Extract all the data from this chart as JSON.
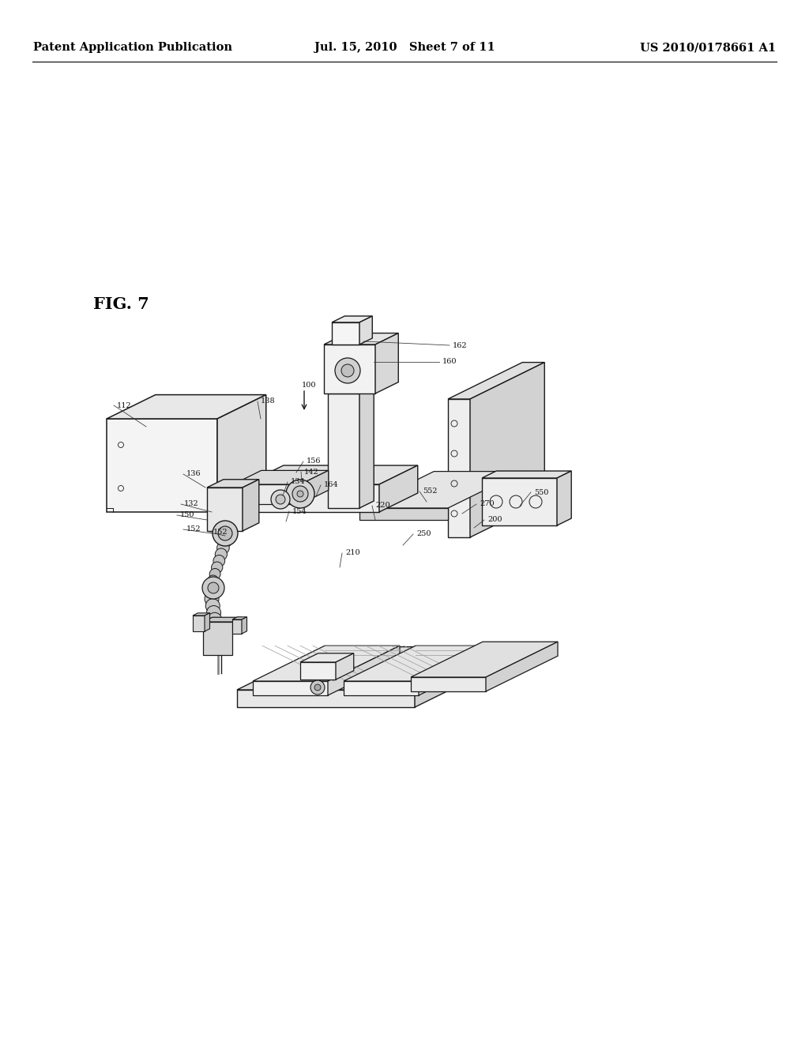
{
  "background_color": "#ffffff",
  "header_left": "Patent Application Publication",
  "header_middle": "Jul. 15, 2010   Sheet 7 of 11",
  "header_right": "US 2010/0178661 A1",
  "header_fontsize": 10.5,
  "fig_label": "FIG. 7",
  "page_width": 10.24,
  "page_height": 13.2,
  "lc": "#1a1a1a",
  "label_fontsize": 7.0,
  "fig_label_fontsize": 15
}
